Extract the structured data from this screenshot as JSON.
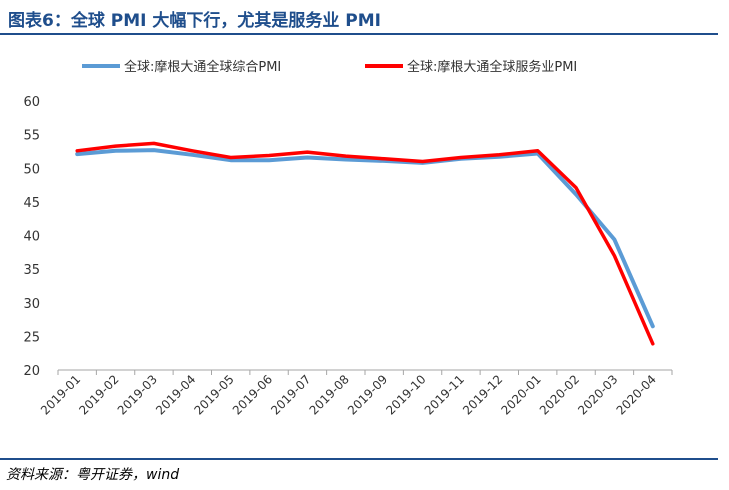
{
  "header": {
    "title": "图表6：全球 PMI 大幅下行，尤其是服务业 PMI"
  },
  "footer": {
    "source": "资料来源：粤开证券，wind"
  },
  "chart_data": {
    "type": "line",
    "title": "",
    "xlabel": "",
    "ylabel": "",
    "x": [
      "2019-01",
      "2019-02",
      "2019-03",
      "2019-04",
      "2019-05",
      "2019-06",
      "2019-07",
      "2019-08",
      "2019-09",
      "2019-10",
      "2019-11",
      "2019-12",
      "2020-01",
      "2020-02",
      "2020-03",
      "2020-04"
    ],
    "ylim": [
      20,
      60
    ],
    "yticks": [
      20,
      25,
      30,
      35,
      40,
      45,
      50,
      55,
      60
    ],
    "grid": false,
    "legend": "top",
    "series": [
      {
        "name": "全球:摩根大通全球综合PMI",
        "color": "#5b9bd5",
        "values": [
          52.1,
          52.6,
          52.7,
          52.0,
          51.2,
          51.2,
          51.6,
          51.3,
          51.1,
          50.8,
          51.4,
          51.7,
          52.2,
          46.1,
          39.4,
          26.5
        ]
      },
      {
        "name": "全球:摩根大通全球服务业PMI",
        "color": "#ff0000",
        "values": [
          52.6,
          53.3,
          53.7,
          52.6,
          51.6,
          51.9,
          52.4,
          51.8,
          51.4,
          51.0,
          51.6,
          52.0,
          52.6,
          47.1,
          37.0,
          23.9
        ]
      }
    ]
  }
}
